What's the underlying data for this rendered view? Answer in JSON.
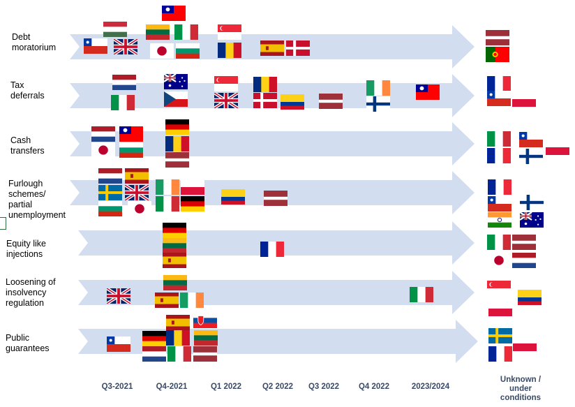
{
  "rows": [
    {
      "label": "Debt\nmoratorium"
    },
    {
      "label": "Tax\ndeferrals"
    },
    {
      "label": "Cash\ntransfers"
    },
    {
      "label": "Furlough\nschemes/\npartial\nunemployment"
    },
    {
      "label": "Equity like\ninjections"
    },
    {
      "label": "Loosening of\ninsolvency\nregulation"
    },
    {
      "label": "Public\nguarantees"
    }
  ],
  "columns": [
    "Q3-2021",
    "Q4-2021",
    "Q1 2022",
    "Q2 2022",
    "Q3 2022",
    "Q4 2022",
    "2023/2024",
    "Unknown /\nunder\nconditions"
  ],
  "colors": {
    "arrow": "#d3ddf0",
    "column_label": "#3a4a66"
  },
  "flags": [
    [
      "Debt moratorium",
      "Q3-2021",
      "hungary"
    ],
    [
      "Debt moratorium",
      "Q3-2021",
      "chile"
    ],
    [
      "Debt moratorium",
      "Q3-2021",
      "uk"
    ],
    [
      "Debt moratorium",
      "Q4-2021",
      "taiwan"
    ],
    [
      "Debt moratorium",
      "Q4-2021",
      "lithuania"
    ],
    [
      "Debt moratorium",
      "Q4-2021",
      "italy"
    ],
    [
      "Debt moratorium",
      "Q4-2021",
      "japan"
    ],
    [
      "Debt moratorium",
      "Q4-2021",
      "bulgaria"
    ],
    [
      "Debt moratorium",
      "Q1 2022",
      "singapore"
    ],
    [
      "Debt moratorium",
      "Q1 2022",
      "romania"
    ],
    [
      "Debt moratorium",
      "Q2 2022",
      "spain"
    ],
    [
      "Debt moratorium",
      "Q2 2022",
      "denmark"
    ],
    [
      "Debt moratorium",
      "Unknown",
      "latvia"
    ],
    [
      "Debt moratorium",
      "Unknown",
      "portugal"
    ],
    [
      "Tax deferrals",
      "Q3-2021",
      "netherlands"
    ],
    [
      "Tax deferrals",
      "Q3-2021",
      "italy"
    ],
    [
      "Tax deferrals",
      "Q4-2021",
      "australia"
    ],
    [
      "Tax deferrals",
      "Q4-2021",
      "czech"
    ],
    [
      "Tax deferrals",
      "Q1 2022",
      "singapore"
    ],
    [
      "Tax deferrals",
      "Q1 2022",
      "uk"
    ],
    [
      "Tax deferrals",
      "Q2 2022",
      "romania"
    ],
    [
      "Tax deferrals",
      "Q2 2022",
      "denmark"
    ],
    [
      "Tax deferrals",
      "Q2 2022",
      "colombia"
    ],
    [
      "Tax deferrals",
      "Q3 2022",
      "latvia"
    ],
    [
      "Tax deferrals",
      "Q4 2022",
      "ireland"
    ],
    [
      "Tax deferrals",
      "Q4 2022",
      "finland"
    ],
    [
      "Tax deferrals",
      "2023/2024",
      "taiwan"
    ],
    [
      "Tax deferrals",
      "Unknown",
      "france"
    ],
    [
      "Tax deferrals",
      "Unknown",
      "chile"
    ],
    [
      "Tax deferrals",
      "Unknown",
      "poland"
    ],
    [
      "Cash transfers",
      "Q3-2021",
      "netherlands"
    ],
    [
      "Cash transfers",
      "Q3-2021",
      "taiwan"
    ],
    [
      "Cash transfers",
      "Q3-2021",
      "japan"
    ],
    [
      "Cash transfers",
      "Q3-2021",
      "bulgaria"
    ],
    [
      "Cash transfers",
      "Q4-2021",
      "germany"
    ],
    [
      "Cash transfers",
      "Q4-2021",
      "romania"
    ],
    [
      "Cash transfers",
      "Q4-2021",
      "latvia"
    ],
    [
      "Cash transfers",
      "Unknown",
      "italy"
    ],
    [
      "Cash transfers",
      "Unknown",
      "chile"
    ],
    [
      "Cash transfers",
      "Unknown",
      "poland"
    ],
    [
      "Cash transfers",
      "Unknown",
      "france"
    ],
    [
      "Cash transfers",
      "Unknown",
      "finland"
    ],
    [
      "Furlough schemes",
      "Q3-2021",
      "netherlands"
    ],
    [
      "Furlough schemes",
      "Q3-2021",
      "spain"
    ],
    [
      "Furlough schemes",
      "Q3-2021",
      "sweden"
    ],
    [
      "Furlough schemes",
      "Q3-2021",
      "uk"
    ],
    [
      "Furlough schemes",
      "Q3-2021",
      "bulgaria"
    ],
    [
      "Furlough schemes",
      "Q3-2021",
      "japan"
    ],
    [
      "Furlough schemes",
      "Q4-2021",
      "ireland"
    ],
    [
      "Furlough schemes",
      "Q4-2021",
      "poland"
    ],
    [
      "Furlough schemes",
      "Q4-2021",
      "italy"
    ],
    [
      "Furlough schemes",
      "Q4-2021",
      "germany"
    ],
    [
      "Furlough schemes",
      "Q1 2022",
      "colombia"
    ],
    [
      "Furlough schemes",
      "Q2 2022",
      "latvia"
    ],
    [
      "Furlough schemes",
      "Unknown",
      "france"
    ],
    [
      "Furlough schemes",
      "Unknown",
      "chile"
    ],
    [
      "Furlough schemes",
      "Unknown",
      "finland"
    ],
    [
      "Furlough schemes",
      "Unknown",
      "india"
    ],
    [
      "Furlough schemes",
      "Unknown",
      "australia"
    ],
    [
      "Equity like injections",
      "Q4-2021",
      "germany"
    ],
    [
      "Equity like injections",
      "Q4-2021",
      "lithuania"
    ],
    [
      "Equity like injections",
      "Q4-2021",
      "spain"
    ],
    [
      "Equity like injections",
      "Q2 2022",
      "france"
    ],
    [
      "Equity like injections",
      "Unknown",
      "italy"
    ],
    [
      "Equity like injections",
      "Unknown",
      "latvia"
    ],
    [
      "Equity like injections",
      "Unknown",
      "japan"
    ],
    [
      "Equity like injections",
      "Unknown",
      "netherlands"
    ],
    [
      "Loosening of insolvency regulation",
      "Q3-2021",
      "uk"
    ],
    [
      "Loosening of insolvency regulation",
      "Q4-2021",
      "lithuania"
    ],
    [
      "Loosening of insolvency regulation",
      "Q4-2021",
      "spain"
    ],
    [
      "Loosening of insolvency regulation",
      "Q4-2021",
      "ireland"
    ],
    [
      "Loosening of insolvency regulation",
      "2023/2024",
      "italy"
    ],
    [
      "Loosening of insolvency regulation",
      "Unknown",
      "singapore"
    ],
    [
      "Loosening of insolvency regulation",
      "Unknown",
      "colombia"
    ],
    [
      "Loosening of insolvency regulation",
      "Unknown",
      "poland"
    ],
    [
      "Public guarantees",
      "Q3-2021",
      "chile"
    ],
    [
      "Public guarantees",
      "Q4-2021",
      "spain"
    ],
    [
      "Public guarantees",
      "Q4-2021",
      "slovakia"
    ],
    [
      "Public guarantees",
      "Q4-2021",
      "germany"
    ],
    [
      "Public guarantees",
      "Q4-2021",
      "romania"
    ],
    [
      "Public guarantees",
      "Q4-2021",
      "lithuania"
    ],
    [
      "Public guarantees",
      "Q4-2021",
      "netherlands"
    ],
    [
      "Public guarantees",
      "Q4-2021",
      "italy"
    ],
    [
      "Public guarantees",
      "Q4-2021",
      "latvia"
    ],
    [
      "Public guarantees",
      "Unknown",
      "sweden"
    ],
    [
      "Public guarantees",
      "Unknown",
      "poland"
    ],
    [
      "Public guarantees",
      "Unknown",
      "france"
    ]
  ]
}
